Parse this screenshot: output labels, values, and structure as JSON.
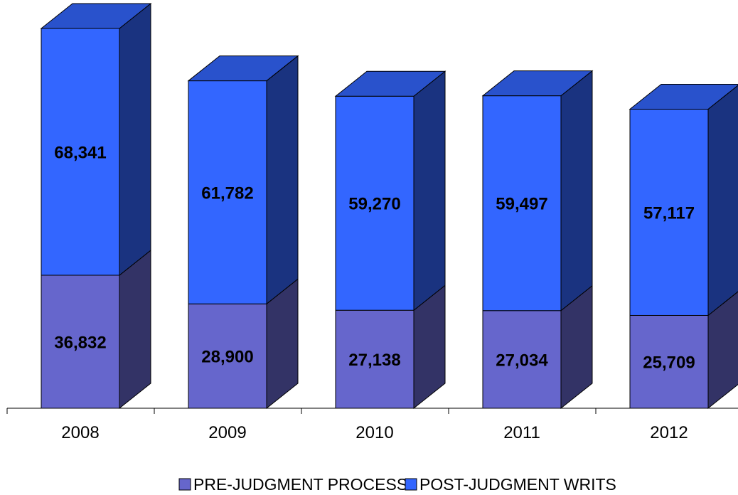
{
  "chart_data": {
    "type": "bar",
    "stacked": true,
    "three_d": true,
    "categories": [
      "2008",
      "2009",
      "2010",
      "2011",
      "2012"
    ],
    "series": [
      {
        "name": "PRE-JUDGMENT PROCESS",
        "values": [
          36832,
          28900,
          27138,
          27034,
          25709
        ],
        "value_labels": [
          "36,832",
          "28,900",
          "27,138",
          "27,034",
          "25,709"
        ]
      },
      {
        "name": "POST-JUDGMENT WRITS",
        "values": [
          68341,
          61782,
          59270,
          59497,
          57117
        ],
        "value_labels": [
          "68,341",
          "61,782",
          "59,270",
          "59,497",
          "57,117"
        ]
      }
    ],
    "ylim": [
      0,
      110000
    ],
    "grid": false,
    "legend_position": "bottom",
    "colors": {
      "PRE-JUDGMENT PROCESS": {
        "front": "#6666cc",
        "side": "#333366",
        "top": "#4c4ca6"
      },
      "POST-JUDGMENT WRITS": {
        "front": "#3366ff",
        "side": "#1a3380",
        "top": "#2952cc"
      }
    }
  }
}
